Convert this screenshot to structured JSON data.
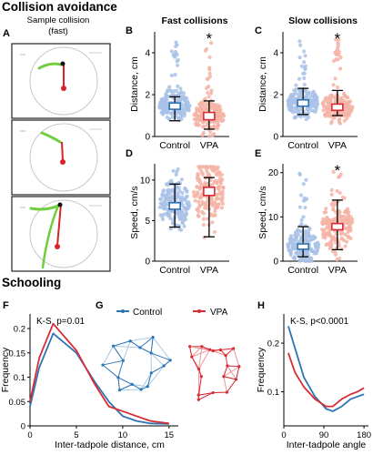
{
  "figure": {
    "section_top": "Collision avoidance",
    "section_bottom": "Schooling",
    "letters": {
      "A": "A",
      "B": "B",
      "C": "C",
      "D": "D",
      "E": "E",
      "F": "F",
      "G": "G",
      "H": "H"
    },
    "colors": {
      "control": "#2d74b4",
      "vpa": "#d92b35",
      "control_dots": "#a9c2e6",
      "vpa_dots": "#f5b4a6",
      "tadpole": "#6fce3c",
      "red_line": "#d8232a"
    }
  },
  "panel_a": {
    "title": "Sample collision",
    "subtitle": "(fast)"
  },
  "chart_data": [
    {
      "id": "B",
      "type": "scatter",
      "title": "Fast collisions",
      "ylabel": "Distance, cm",
      "categories": [
        "Control",
        "VPA"
      ],
      "ylim": [
        0,
        5
      ],
      "yticks": [
        "0",
        "2",
        "4"
      ],
      "star": "*",
      "summary": [
        {
          "name": "Control",
          "median": 1.45,
          "q1": 1.3,
          "q3": 1.6,
          "low": 0.75,
          "high": 1.9
        },
        {
          "name": "VPA",
          "median": 0.95,
          "q1": 0.8,
          "q3": 1.15,
          "low": 0.35,
          "high": 1.7
        }
      ]
    },
    {
      "id": "C",
      "type": "scatter",
      "title": "Slow collisions",
      "ylabel": "Distance, cm",
      "categories": [
        "Control",
        "VPA"
      ],
      "ylim": [
        0,
        5
      ],
      "yticks": [
        "0",
        "2",
        "4"
      ],
      "star": "*",
      "summary": [
        {
          "name": "Control",
          "median": 1.6,
          "q1": 1.45,
          "q3": 1.75,
          "low": 1.05,
          "high": 2.3
        },
        {
          "name": "VPA",
          "median": 1.4,
          "q1": 1.25,
          "q3": 1.55,
          "low": 1.0,
          "high": 2.2
        }
      ]
    },
    {
      "id": "D",
      "type": "scatter",
      "title": "",
      "ylabel": "Speed, cm/s",
      "categories": [
        "Control",
        "VPA"
      ],
      "ylim": [
        0,
        12
      ],
      "yticks": [
        "0",
        "5",
        "10"
      ],
      "star": "",
      "summary": [
        {
          "name": "Control",
          "median": 6.8,
          "q1": 6.4,
          "q3": 7.2,
          "low": 4.2,
          "high": 9.5
        },
        {
          "name": "VPA",
          "median": 8.6,
          "q1": 8.1,
          "q3": 9.1,
          "low": 3.0,
          "high": 10.3
        }
      ]
    },
    {
      "id": "E",
      "type": "scatter",
      "title": "",
      "ylabel": "Speed, cm/s",
      "categories": [
        "Control",
        "VPA"
      ],
      "ylim": [
        0,
        22
      ],
      "yticks": [
        "0",
        "10",
        "20"
      ],
      "star": "*",
      "summary": [
        {
          "name": "Control",
          "median": 3.3,
          "q1": 2.7,
          "q3": 3.9,
          "low": 1.0,
          "high": 7.8
        },
        {
          "name": "VPA",
          "median": 7.8,
          "q1": 7.1,
          "q3": 8.5,
          "low": 2.6,
          "high": 13.8
        }
      ]
    },
    {
      "id": "F",
      "type": "line",
      "title": "",
      "xlabel": "Inter-tadpole distance, cm",
      "ylabel": "Frequency",
      "annotation": "K-S, p=0.01",
      "xlim": [
        0,
        16
      ],
      "ylim": [
        0,
        0.23
      ],
      "xticks": [
        "0",
        "5",
        "10",
        "15"
      ],
      "yticks": [
        "0",
        "0.05",
        "0.1",
        "0.15",
        "0.2"
      ],
      "series": [
        {
          "name": "Control",
          "color": "#2d74b4",
          "x": [
            0,
            1,
            2.5,
            5,
            7,
            8.5,
            10,
            11.5,
            13,
            15
          ],
          "y": [
            0.04,
            0.12,
            0.19,
            0.15,
            0.09,
            0.05,
            0.02,
            0.01,
            0.005,
            0.004
          ]
        },
        {
          "name": "VPA",
          "color": "#d92b35",
          "x": [
            0,
            1,
            2.5,
            5,
            7,
            8.5,
            10,
            11.5,
            13,
            15
          ],
          "y": [
            0.05,
            0.14,
            0.21,
            0.155,
            0.085,
            0.04,
            0.03,
            0.02,
            0.01,
            0.005
          ]
        }
      ]
    },
    {
      "id": "H",
      "type": "line",
      "title": "",
      "xlabel": "Inter-tadpole angle",
      "ylabel": "Frequency",
      "annotation": "K-S, p<0.0001",
      "xlim": [
        0,
        190
      ],
      "ylim": [
        0.03,
        0.26
      ],
      "xticks": [
        "0",
        "90",
        "180"
      ],
      "yticks": [
        "0.1",
        "0.2"
      ],
      "series": [
        {
          "name": "Control",
          "color": "#2d74b4",
          "x": [
            10,
            25,
            45,
            70,
            95,
            110,
            130,
            150,
            165,
            180
          ],
          "y": [
            0.235,
            0.19,
            0.13,
            0.09,
            0.065,
            0.06,
            0.07,
            0.085,
            0.09,
            0.095
          ]
        },
        {
          "name": "VPA",
          "color": "#d92b35",
          "x": [
            10,
            25,
            45,
            70,
            95,
            110,
            130,
            150,
            165,
            180
          ],
          "y": [
            0.18,
            0.14,
            0.11,
            0.085,
            0.07,
            0.07,
            0.085,
            0.095,
            0.1,
            0.108
          ]
        }
      ]
    }
  ],
  "legend_g": {
    "control": "Control",
    "vpa": "VPA"
  }
}
